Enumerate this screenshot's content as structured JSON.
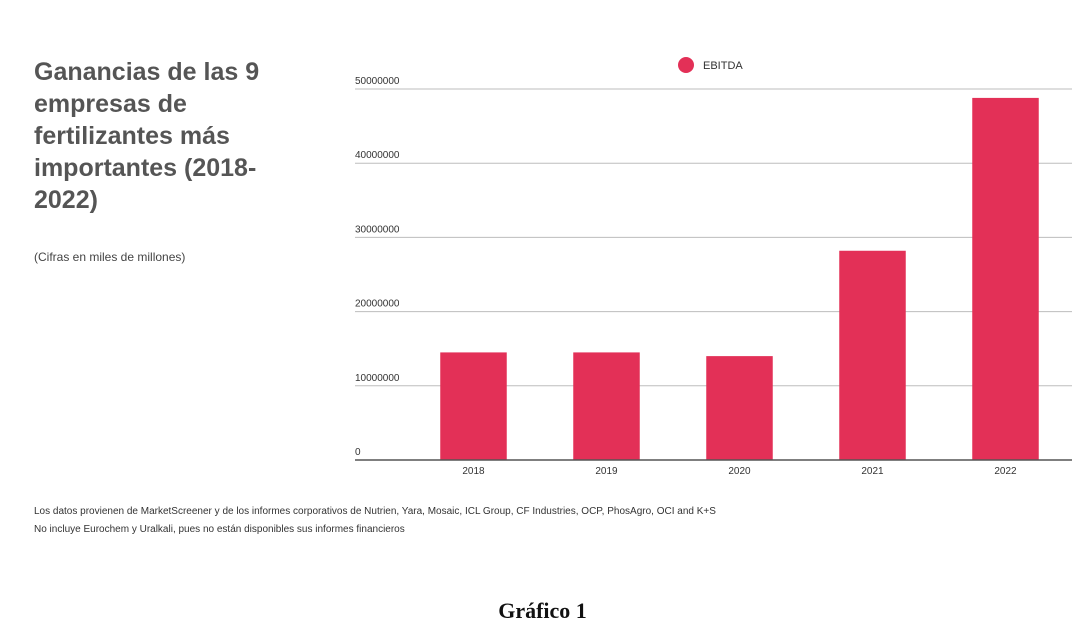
{
  "chart_data": {
    "type": "bar",
    "title": "Ganancias de las 9 empresas de fertilizantes más importantes (2018-2022)",
    "subtitle": "(Cifras en miles de millones)",
    "categories": [
      "2018",
      "2019",
      "2020",
      "2021",
      "2022"
    ],
    "series": [
      {
        "name": "EBITDA",
        "color": "#e33057",
        "values": [
          14500000,
          14500000,
          14000000,
          28200000,
          48800000
        ]
      }
    ],
    "ylim": [
      0,
      50000000
    ],
    "yticks": [
      "0",
      "10000000",
      "20000000",
      "30000000",
      "40000000",
      "50000000"
    ],
    "grid": true,
    "legend_position": "top-center"
  },
  "notes": [
    "Los datos provienen de MarketScreener y de los informes corporativos de  Nutrien, Yara, Mosaic, ICL Group, CF Industries, OCP, PhosAgro, OCI and  K+S",
    "No incluye Eurochem y Uralkali, pues no están disponibles sus informes financieros"
  ],
  "caption": "Gráfico 1"
}
